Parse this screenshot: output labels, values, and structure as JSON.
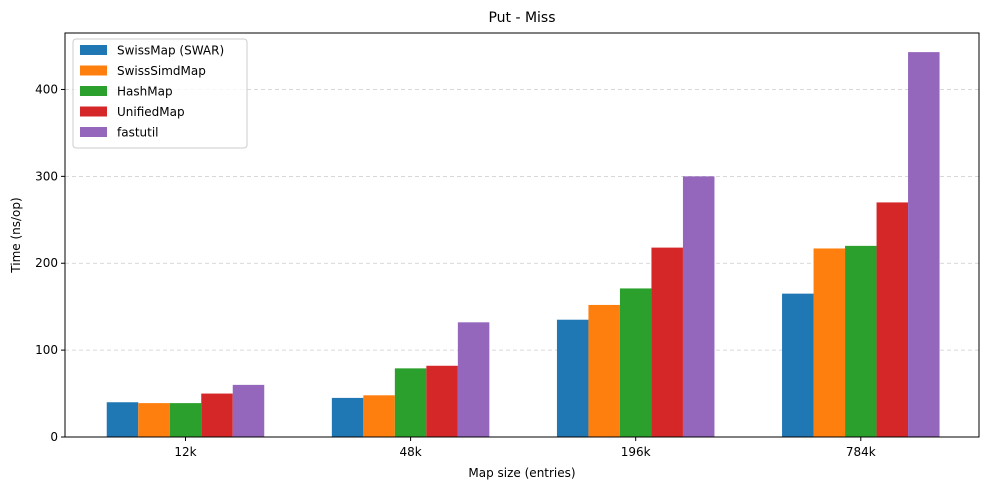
{
  "chart_data": {
    "type": "bar",
    "title": "Put - Miss",
    "xlabel": "Map size (entries)",
    "ylabel": "Time (ns/op)",
    "categories": [
      "12k",
      "48k",
      "196k",
      "784k"
    ],
    "series": [
      {
        "name": "SwissMap (SWAR)",
        "color": "#1f77b4",
        "values": [
          40,
          45,
          135,
          165
        ]
      },
      {
        "name": "SwissSimdMap",
        "color": "#ff7f0e",
        "values": [
          39,
          48,
          152,
          217
        ]
      },
      {
        "name": "HashMap",
        "color": "#2ca02c",
        "values": [
          39,
          79,
          171,
          220
        ]
      },
      {
        "name": "UnifiedMap",
        "color": "#d62728",
        "values": [
          50,
          82,
          218,
          270
        ]
      },
      {
        "name": "fastutil",
        "color": "#9467bd",
        "values": [
          60,
          132,
          300,
          443
        ]
      }
    ],
    "ylim": [
      0,
      465
    ],
    "yticks": [
      0,
      100,
      200,
      300,
      400
    ],
    "grid": "horizontal-dashed",
    "legend": "top-left"
  }
}
